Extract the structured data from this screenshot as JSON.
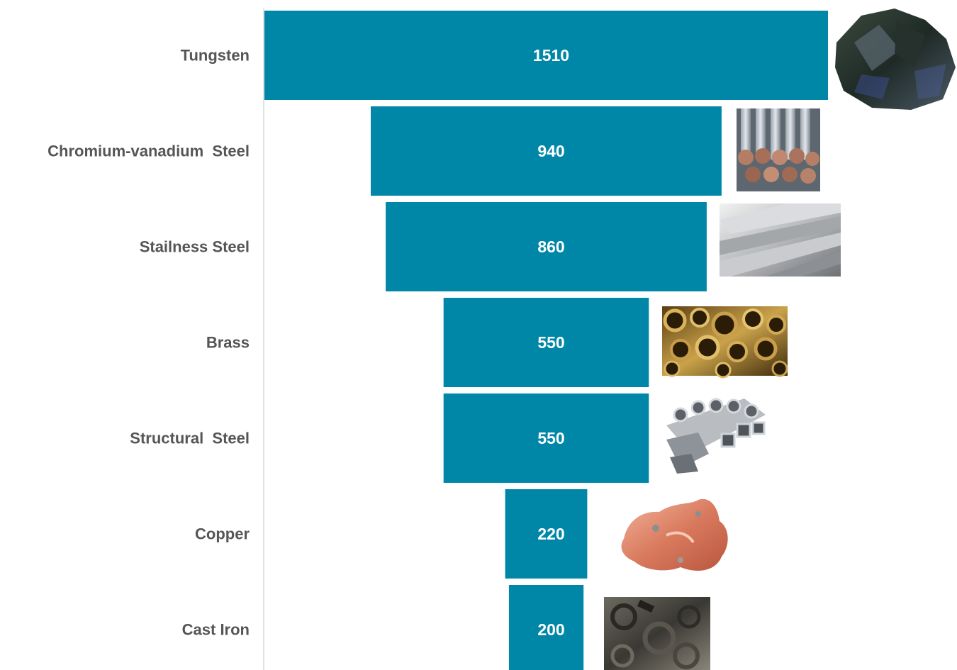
{
  "chart_data": {
    "type": "bar",
    "orientation": "horizontal",
    "style": "funnel",
    "categories": [
      "Tungsten",
      "Chromium-vanadium  Steel",
      "Stailness Steel",
      "Brass",
      "Structural  Steel",
      "Copper",
      "Cast Iron"
    ],
    "values": [
      1510,
      940,
      860,
      550,
      550,
      220,
      200
    ],
    "value_labels": [
      "1510",
      "940",
      "860",
      "550",
      "550",
      "220",
      "200"
    ],
    "images": [
      "tungsten-ore-photo",
      "steel-rods-photo",
      "steel-flat-bars-photo",
      "brass-pipes-photo",
      "steel-profiles-photo",
      "copper-nugget-photo",
      "cast-iron-scrap-photo"
    ],
    "title": "",
    "xlabel": "",
    "ylabel": "",
    "grid": false,
    "legend": "none",
    "colors": {
      "bar": "#0087A8",
      "label": "#555555",
      "value_text": "#FFFFFF",
      "axis": "#D9D9D9"
    }
  }
}
